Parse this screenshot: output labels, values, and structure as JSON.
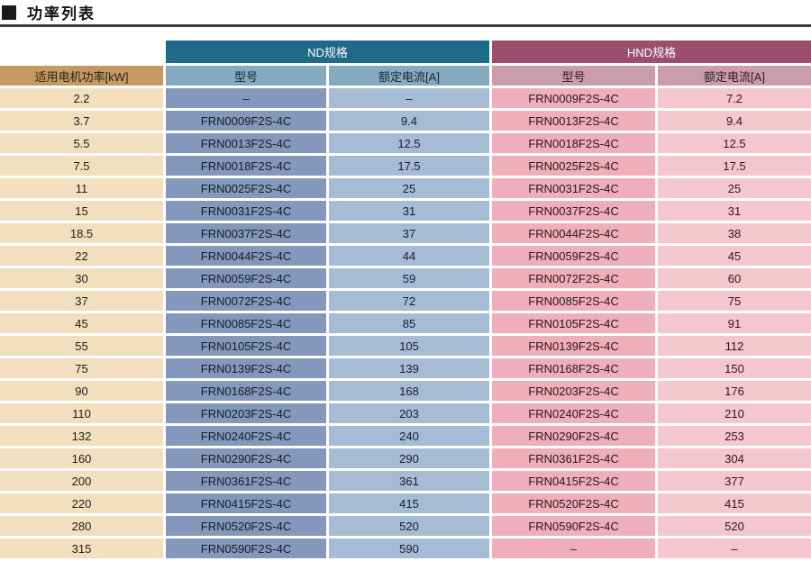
{
  "page": {
    "title": "功率列表"
  },
  "table": {
    "power_column_header": "适用电机功率[kW]",
    "groups": {
      "nd": {
        "label": "ND规格",
        "model_header": "型号",
        "current_header": "额定电流[A]"
      },
      "hnd": {
        "label": "HND规格",
        "model_header": "型号",
        "current_header": "额定电流[A]"
      }
    },
    "rows": [
      {
        "power": "2.2",
        "nd_model": "–",
        "nd_current": "–",
        "hnd_model": "FRN0009F2S-4C",
        "hnd_current": "7.2"
      },
      {
        "power": "3.7",
        "nd_model": "FRN0009F2S-4C",
        "nd_current": "9.4",
        "hnd_model": "FRN0013F2S-4C",
        "hnd_current": "9.4"
      },
      {
        "power": "5.5",
        "nd_model": "FRN0013F2S-4C",
        "nd_current": "12.5",
        "hnd_model": "FRN0018F2S-4C",
        "hnd_current": "12.5"
      },
      {
        "power": "7.5",
        "nd_model": "FRN0018F2S-4C",
        "nd_current": "17.5",
        "hnd_model": "FRN0025F2S-4C",
        "hnd_current": "17.5"
      },
      {
        "power": "11",
        "nd_model": "FRN0025F2S-4C",
        "nd_current": "25",
        "hnd_model": "FRN0031F2S-4C",
        "hnd_current": "25"
      },
      {
        "power": "15",
        "nd_model": "FRN0031F2S-4C",
        "nd_current": "31",
        "hnd_model": "FRN0037F2S-4C",
        "hnd_current": "31"
      },
      {
        "power": "18.5",
        "nd_model": "FRN0037F2S-4C",
        "nd_current": "37",
        "hnd_model": "FRN0044F2S-4C",
        "hnd_current": "38"
      },
      {
        "power": "22",
        "nd_model": "FRN0044F2S-4C",
        "nd_current": "44",
        "hnd_model": "FRN0059F2S-4C",
        "hnd_current": "45"
      },
      {
        "power": "30",
        "nd_model": "FRN0059F2S-4C",
        "nd_current": "59",
        "hnd_model": "FRN0072F2S-4C",
        "hnd_current": "60"
      },
      {
        "power": "37",
        "nd_model": "FRN0072F2S-4C",
        "nd_current": "72",
        "hnd_model": "FRN0085F2S-4C",
        "hnd_current": "75"
      },
      {
        "power": "45",
        "nd_model": "FRN0085F2S-4C",
        "nd_current": "85",
        "hnd_model": "FRN0105F2S-4C",
        "hnd_current": "91"
      },
      {
        "power": "55",
        "nd_model": "FRN0105F2S-4C",
        "nd_current": "105",
        "hnd_model": "FRN0139F2S-4C",
        "hnd_current": "112"
      },
      {
        "power": "75",
        "nd_model": "FRN0139F2S-4C",
        "nd_current": "139",
        "hnd_model": "FRN0168F2S-4C",
        "hnd_current": "150"
      },
      {
        "power": "90",
        "nd_model": "FRN0168F2S-4C",
        "nd_current": "168",
        "hnd_model": "FRN0203F2S-4C",
        "hnd_current": "176"
      },
      {
        "power": "110",
        "nd_model": "FRN0203F2S-4C",
        "nd_current": "203",
        "hnd_model": "FRN0240F2S-4C",
        "hnd_current": "210"
      },
      {
        "power": "132",
        "nd_model": "FRN0240F2S-4C",
        "nd_current": "240",
        "hnd_model": "FRN0290F2S-4C",
        "hnd_current": "253"
      },
      {
        "power": "160",
        "nd_model": "FRN0290F2S-4C",
        "nd_current": "290",
        "hnd_model": "FRN0361F2S-4C",
        "hnd_current": "304"
      },
      {
        "power": "200",
        "nd_model": "FRN0361F2S-4C",
        "nd_current": "361",
        "hnd_model": "FRN0415F2S-4C",
        "hnd_current": "377"
      },
      {
        "power": "220",
        "nd_model": "FRN0415F2S-4C",
        "nd_current": "415",
        "hnd_model": "FRN0520F2S-4C",
        "hnd_current": "415"
      },
      {
        "power": "280",
        "nd_model": "FRN0520F2S-4C",
        "nd_current": "520",
        "hnd_model": "FRN0590F2S-4C",
        "hnd_current": "520"
      },
      {
        "power": "315",
        "nd_model": "FRN0590F2S-4C",
        "nd_current": "590",
        "hnd_model": "–",
        "hnd_current": "–"
      }
    ]
  },
  "colors": {
    "nd_group_header": "#1f6989",
    "hnd_group_header": "#9b4f6d",
    "power_header": "#c49a62",
    "power_cell": "#f2dfbd",
    "nd_subheader": "#85a9be",
    "nd_model_cell": "#8398ba",
    "nd_current_cell": "#a6bbd6",
    "hnd_subheader": "#ca9cac",
    "hnd_model_cell": "#efaebb",
    "hnd_current_cell": "#f4c7cf",
    "title_rule": "#3c3c3c"
  }
}
